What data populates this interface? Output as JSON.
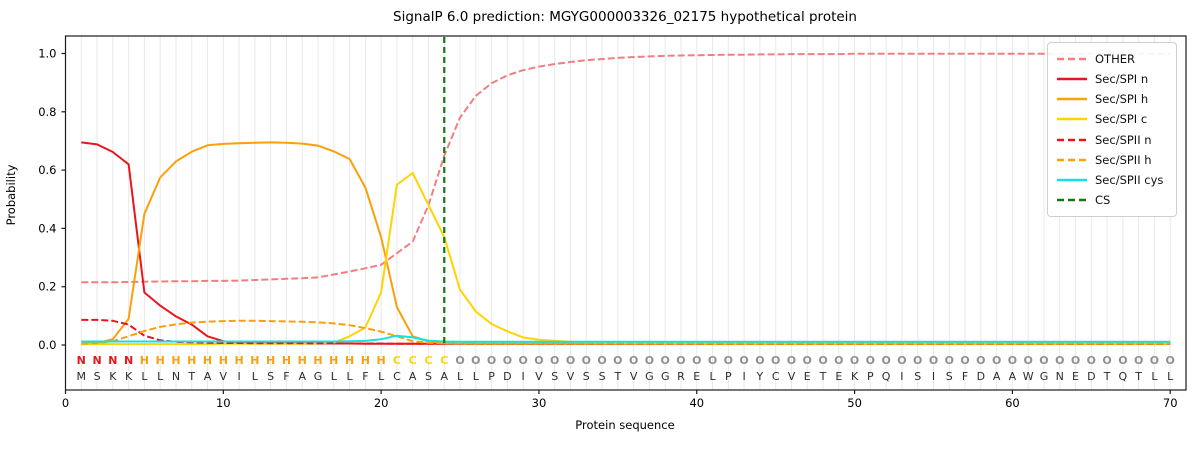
{
  "chart_data": {
    "type": "line",
    "title": "SignalP 6.0 prediction: MGYG000003326_02175 hypothetical protein",
    "xlabel": "Protein sequence",
    "ylabel": "Probability",
    "x_positions": "residue index 1-70",
    "xlim": [
      0,
      71
    ],
    "ylim": [
      -0.15,
      1.06
    ],
    "xticks": [
      0,
      10,
      20,
      30,
      40,
      50,
      60,
      70
    ],
    "ytick_labels": [
      "0.0",
      "0.2",
      "0.4",
      "0.6",
      "0.8",
      "1.0"
    ],
    "grid": "vertical line at every residue position, no horizontal gridlines",
    "legend_position": "upper right",
    "series": [
      {
        "name": "OTHER",
        "color": "#f08080",
        "dash": "7,3",
        "values": [
          0.215,
          0.215,
          0.215,
          0.216,
          0.217,
          0.218,
          0.219,
          0.219,
          0.22,
          0.22,
          0.221,
          0.223,
          0.225,
          0.227,
          0.229,
          0.232,
          0.242,
          0.252,
          0.263,
          0.275,
          0.315,
          0.355,
          0.48,
          0.65,
          0.78,
          0.855,
          0.898,
          0.925,
          0.943,
          0.955,
          0.964,
          0.971,
          0.977,
          0.981,
          0.985,
          0.988,
          0.99,
          0.992,
          0.993,
          0.994,
          0.995,
          0.996,
          0.996,
          0.997,
          0.997,
          0.998,
          0.998,
          0.998,
          0.998,
          0.999,
          0.999,
          0.999,
          0.999,
          0.999,
          0.999,
          0.999,
          0.999,
          0.999,
          0.999,
          0.999,
          0.999,
          0.999,
          0.999,
          0.999,
          0.999,
          0.999,
          0.999,
          0.999,
          0.999,
          0.999
        ]
      },
      {
        "name": "Sec/SPI n",
        "color": "#e9151d",
        "dash": null,
        "values": [
          0.695,
          0.688,
          0.662,
          0.62,
          0.18,
          0.135,
          0.098,
          0.07,
          0.03,
          0.013,
          0.008,
          0.006,
          0.005,
          0.005,
          0.005,
          0.005,
          0.005,
          0.005,
          0.004,
          0.004,
          0.004,
          0.004,
          0.004,
          0.004,
          0.004,
          0.004,
          0.004,
          0.004,
          0.004,
          0.004,
          0.004,
          0.004,
          0.004,
          0.004,
          0.004,
          0.004,
          0.004,
          0.004,
          0.004,
          0.004,
          0.004,
          0.004,
          0.004,
          0.004,
          0.004,
          0.004,
          0.004,
          0.004,
          0.004,
          0.004,
          0.004,
          0.004,
          0.004,
          0.004,
          0.004,
          0.004,
          0.004,
          0.004,
          0.004,
          0.004,
          0.004,
          0.004,
          0.004,
          0.004,
          0.004,
          0.004,
          0.004,
          0.004,
          0.004,
          0.004
        ]
      },
      {
        "name": "Sec/SPI h",
        "color": "#f9a00a",
        "dash": null,
        "values": [
          0.004,
          0.007,
          0.02,
          0.09,
          0.45,
          0.575,
          0.63,
          0.663,
          0.685,
          0.69,
          0.692,
          0.694,
          0.695,
          0.694,
          0.691,
          0.684,
          0.664,
          0.638,
          0.54,
          0.37,
          0.13,
          0.03,
          0.012,
          0.007,
          0.005,
          0.004,
          0.004,
          0.004,
          0.004,
          0.004,
          0.004,
          0.004,
          0.004,
          0.004,
          0.004,
          0.004,
          0.004,
          0.004,
          0.004,
          0.004,
          0.004,
          0.004,
          0.004,
          0.004,
          0.004,
          0.004,
          0.004,
          0.004,
          0.004,
          0.004,
          0.004,
          0.004,
          0.004,
          0.004,
          0.004,
          0.004,
          0.004,
          0.004,
          0.004,
          0.004,
          0.004,
          0.004,
          0.004,
          0.004,
          0.004,
          0.004,
          0.004,
          0.004,
          0.004,
          0.004
        ]
      },
      {
        "name": "Sec/SPI c",
        "color": "#ffd400",
        "dash": null,
        "values": [
          0.003,
          0.003,
          0.003,
          0.003,
          0.003,
          0.003,
          0.003,
          0.003,
          0.003,
          0.004,
          0.004,
          0.004,
          0.004,
          0.004,
          0.004,
          0.005,
          0.008,
          0.03,
          0.06,
          0.18,
          0.55,
          0.59,
          0.48,
          0.37,
          0.19,
          0.115,
          0.072,
          0.047,
          0.026,
          0.018,
          0.014,
          0.011,
          0.009,
          0.008,
          0.007,
          0.006,
          0.006,
          0.005,
          0.005,
          0.005,
          0.004,
          0.004,
          0.004,
          0.004,
          0.004,
          0.004,
          0.004,
          0.004,
          0.004,
          0.004,
          0.004,
          0.004,
          0.004,
          0.004,
          0.004,
          0.004,
          0.004,
          0.004,
          0.004,
          0.004,
          0.004,
          0.004,
          0.004,
          0.004,
          0.004,
          0.004,
          0.004,
          0.004,
          0.004,
          0.004
        ]
      },
      {
        "name": "Sec/SPII n",
        "color": "#e9151d",
        "dash": "7,3",
        "values": [
          0.086,
          0.086,
          0.083,
          0.07,
          0.032,
          0.016,
          0.011,
          0.009,
          0.008,
          0.007,
          0.007,
          0.006,
          0.006,
          0.006,
          0.006,
          0.005,
          0.005,
          0.005,
          0.005,
          0.005,
          0.004,
          0.004,
          0.004,
          0.004,
          0.004,
          0.004,
          0.004,
          0.004,
          0.004,
          0.004,
          0.004,
          0.004,
          0.004,
          0.004,
          0.004,
          0.004,
          0.004,
          0.004,
          0.004,
          0.004,
          0.004,
          0.004,
          0.004,
          0.004,
          0.004,
          0.004,
          0.004,
          0.004,
          0.004,
          0.004,
          0.004,
          0.004,
          0.004,
          0.004,
          0.004,
          0.004,
          0.004,
          0.004,
          0.004,
          0.004,
          0.004,
          0.004,
          0.004,
          0.004,
          0.004,
          0.004,
          0.004,
          0.004,
          0.004,
          0.004
        ]
      },
      {
        "name": "Sec/SPII h",
        "color": "#f9a00a",
        "dash": "7,3",
        "values": [
          0.004,
          0.007,
          0.013,
          0.03,
          0.048,
          0.062,
          0.071,
          0.077,
          0.08,
          0.082,
          0.083,
          0.083,
          0.082,
          0.081,
          0.08,
          0.078,
          0.074,
          0.068,
          0.058,
          0.046,
          0.03,
          0.013,
          0.008,
          0.006,
          0.005,
          0.005,
          0.005,
          0.005,
          0.005,
          0.005,
          0.005,
          0.005,
          0.005,
          0.005,
          0.005,
          0.005,
          0.005,
          0.005,
          0.005,
          0.005,
          0.005,
          0.005,
          0.005,
          0.005,
          0.005,
          0.005,
          0.005,
          0.005,
          0.005,
          0.005,
          0.005,
          0.005,
          0.005,
          0.005,
          0.005,
          0.005,
          0.005,
          0.005,
          0.005,
          0.005,
          0.005,
          0.005,
          0.005,
          0.005,
          0.005,
          0.005,
          0.005,
          0.005,
          0.005,
          0.005
        ]
      },
      {
        "name": "Sec/SPII cys",
        "color": "#12e2e2",
        "dash": null,
        "values": [
          0.012,
          0.012,
          0.012,
          0.012,
          0.012,
          0.012,
          0.012,
          0.012,
          0.012,
          0.012,
          0.012,
          0.012,
          0.012,
          0.012,
          0.012,
          0.012,
          0.012,
          0.013,
          0.014,
          0.02,
          0.032,
          0.026,
          0.015,
          0.012,
          0.011,
          0.011,
          0.011,
          0.011,
          0.011,
          0.011,
          0.011,
          0.011,
          0.011,
          0.011,
          0.011,
          0.011,
          0.011,
          0.011,
          0.011,
          0.011,
          0.011,
          0.011,
          0.011,
          0.011,
          0.011,
          0.011,
          0.011,
          0.011,
          0.011,
          0.011,
          0.011,
          0.011,
          0.011,
          0.011,
          0.011,
          0.011,
          0.011,
          0.011,
          0.011,
          0.011,
          0.011,
          0.011,
          0.011,
          0.011,
          0.011,
          0.011,
          0.011,
          0.011,
          0.011,
          0.011
        ]
      }
    ],
    "cs_line": {
      "name": "CS",
      "position": 24,
      "color": "#157515",
      "dash": "6,4"
    },
    "sequence": "MSKKLLNTAVILSFAGLLFLCASALLPDIVSVSSTVGGRELPIYCVETEKPQISISFDAAWGNEDTQTLL",
    "region_labels": "NNNNHHHHHHHHHHHHHHHHCCCCOOOOOOOOOOOOOOOOOOOOOOOOOOOOOOOOOOOOOOOOOOOOOO",
    "region_colors": {
      "N": "#e9151d",
      "H": "#f9a00a",
      "C": "#ffd400",
      "O": "#8f8f8f"
    },
    "sequence_color": "#2b2b2b",
    "axis_color": "#1a1a1a",
    "gridline_color": "#e9e9e9"
  }
}
